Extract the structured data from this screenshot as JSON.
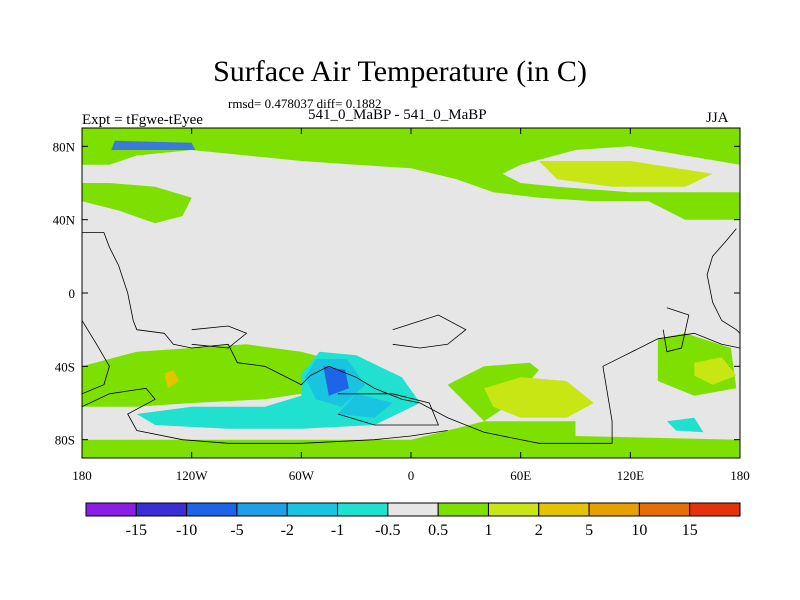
{
  "chart_data": {
    "type": "heatmap",
    "title": "Surface Air Temperature (in C)",
    "stats_label": "rmsd= 0.478037 diff= 0.1882",
    "left_label": "Expt = tFgwe-tEyee",
    "center_label": "541_0_MaBP - 541_0_MaBP",
    "right_label": "JJA",
    "x_range": [
      -180,
      180
    ],
    "y_range": [
      -90,
      90
    ],
    "x_ticks": [
      {
        "value": -180,
        "label": "180"
      },
      {
        "value": -120,
        "label": "120W"
      },
      {
        "value": -60,
        "label": "60W"
      },
      {
        "value": 0,
        "label": "0"
      },
      {
        "value": 60,
        "label": "60E"
      },
      {
        "value": 120,
        "label": "120E"
      },
      {
        "value": 180,
        "label": "180"
      }
    ],
    "y_ticks": [
      {
        "value": 80,
        "label": "80N"
      },
      {
        "value": 40,
        "label": "40N"
      },
      {
        "value": 0,
        "label": "0"
      },
      {
        "value": -40,
        "label": "40S"
      },
      {
        "value": -80,
        "label": "80S"
      }
    ],
    "colorbar": {
      "boundaries": [
        "-15",
        "-10",
        "-5",
        "-2",
        "-1",
        "-0.5",
        "0.5",
        "1",
        "2",
        "5",
        "10",
        "15"
      ],
      "colors": [
        "#8a1ee6",
        "#3a2fd6",
        "#1e64e6",
        "#1ea0e6",
        "#18c4e0",
        "#20e0d0",
        "#e6e6e6",
        "#7ee000",
        "#c8e614",
        "#e6c300",
        "#e6a000",
        "#e66e0a",
        "#e6320a"
      ]
    },
    "regions": [
      {
        "level": "0.5 to 1",
        "color": "#7ee000",
        "points": [
          [
            -180,
            90
          ],
          [
            180,
            90
          ],
          [
            180,
            70
          ],
          [
            120,
            80
          ],
          [
            90,
            78
          ],
          [
            60,
            70
          ],
          [
            50,
            65
          ],
          [
            60,
            60
          ],
          [
            80,
            58
          ],
          [
            120,
            55
          ],
          [
            150,
            55
          ],
          [
            180,
            55
          ],
          [
            180,
            40
          ],
          [
            150,
            40
          ],
          [
            130,
            50
          ],
          [
            100,
            50
          ],
          [
            70,
            52
          ],
          [
            45,
            55
          ],
          [
            25,
            62
          ],
          [
            0,
            68
          ],
          [
            -30,
            70
          ],
          [
            -60,
            72
          ],
          [
            -90,
            75
          ],
          [
            -120,
            78
          ],
          [
            -150,
            75
          ],
          [
            -165,
            70
          ],
          [
            -180,
            70
          ]
        ]
      },
      {
        "level": "0.5 to 1",
        "color": "#7ee000",
        "points": [
          [
            -180,
            50
          ],
          [
            -160,
            45
          ],
          [
            -140,
            38
          ],
          [
            -125,
            42
          ],
          [
            -120,
            52
          ],
          [
            -140,
            58
          ],
          [
            -165,
            60
          ],
          [
            -180,
            60
          ]
        ]
      },
      {
        "level": "0.5 to 1",
        "color": "#7ee000",
        "points": [
          [
            -180,
            -90
          ],
          [
            180,
            -90
          ],
          [
            180,
            -80
          ],
          [
            90,
            -78
          ],
          [
            90,
            -70
          ],
          [
            60,
            -70
          ],
          [
            40,
            -70
          ],
          [
            20,
            -50
          ],
          [
            40,
            -40
          ],
          [
            65,
            -38
          ],
          [
            70,
            -42
          ],
          [
            55,
            -60
          ],
          [
            40,
            -70
          ],
          [
            20,
            -75
          ],
          [
            0,
            -80
          ],
          [
            -60,
            -80
          ],
          [
            -120,
            -80
          ],
          [
            -150,
            -80
          ],
          [
            -180,
            -80
          ]
        ]
      },
      {
        "level": "0.5 to 1",
        "color": "#7ee000",
        "points": [
          [
            -180,
            -40
          ],
          [
            -150,
            -32
          ],
          [
            -120,
            -30
          ],
          [
            -90,
            -28
          ],
          [
            -60,
            -32
          ],
          [
            -30,
            -40
          ],
          [
            -15,
            -46
          ],
          [
            -40,
            -52
          ],
          [
            -80,
            -58
          ],
          [
            -120,
            -60
          ],
          [
            -150,
            -62
          ],
          [
            -180,
            -62
          ]
        ]
      },
      {
        "level": "0.5 to 1",
        "color": "#7ee000",
        "points": [
          [
            135,
            -25
          ],
          [
            150,
            -22
          ],
          [
            175,
            -30
          ],
          [
            178,
            -52
          ],
          [
            155,
            -56
          ],
          [
            135,
            -48
          ]
        ]
      },
      {
        "level": "1 to 2",
        "color": "#c8e614",
        "points": [
          [
            40,
            -52
          ],
          [
            60,
            -46
          ],
          [
            85,
            -48
          ],
          [
            100,
            -60
          ],
          [
            85,
            -68
          ],
          [
            60,
            -68
          ],
          [
            45,
            -62
          ]
        ]
      },
      {
        "level": "1 to 2",
        "color": "#c8e614",
        "points": [
          [
            70,
            72
          ],
          [
            120,
            72
          ],
          [
            165,
            65
          ],
          [
            150,
            58
          ],
          [
            110,
            58
          ],
          [
            80,
            62
          ]
        ]
      },
      {
        "level": "1 to 2",
        "color": "#c8e614",
        "points": [
          [
            155,
            -38
          ],
          [
            170,
            -35
          ],
          [
            178,
            -45
          ],
          [
            165,
            -50
          ],
          [
            155,
            -45
          ]
        ]
      },
      {
        "level": "2 to 5",
        "color": "#e6c300",
        "points": [
          [
            -135,
            -44
          ],
          [
            -130,
            -42
          ],
          [
            -127,
            -48
          ],
          [
            -133,
            -52
          ]
        ]
      },
      {
        "level": "-1 to -0.5",
        "color": "#20e0d0",
        "points": [
          [
            -50,
            -32
          ],
          [
            -30,
            -34
          ],
          [
            -5,
            -46
          ],
          [
            5,
            -60
          ],
          [
            -20,
            -72
          ],
          [
            -60,
            -74
          ],
          [
            -100,
            -74
          ],
          [
            -140,
            -72
          ],
          [
            -150,
            -66
          ],
          [
            -120,
            -62
          ],
          [
            -80,
            -62
          ],
          [
            -60,
            -56
          ],
          [
            -60,
            -44
          ]
        ]
      },
      {
        "level": "-1 to -0.5",
        "color": "#20e0d0",
        "points": [
          [
            140,
            -70
          ],
          [
            155,
            -68
          ],
          [
            160,
            -76
          ],
          [
            145,
            -75
          ]
        ]
      },
      {
        "level": "-2 to -1",
        "color": "#18c4e0",
        "points": [
          [
            -52,
            -36
          ],
          [
            -35,
            -36
          ],
          [
            -25,
            -50
          ],
          [
            -38,
            -62
          ],
          [
            -52,
            -58
          ],
          [
            -58,
            -46
          ]
        ]
      },
      {
        "level": "-2 to -1",
        "color": "#18c4e0",
        "points": [
          [
            -30,
            -55
          ],
          [
            -10,
            -60
          ],
          [
            -20,
            -68
          ],
          [
            -40,
            -66
          ]
        ]
      },
      {
        "level": "-5 to -2",
        "color": "#1e64e6",
        "points": [
          [
            -48,
            -40
          ],
          [
            -36,
            -42
          ],
          [
            -34,
            -52
          ],
          [
            -45,
            -56
          ]
        ]
      },
      {
        "level": "-5 to -2",
        "color": "#3a7ad8",
        "points": [
          [
            -164,
            78
          ],
          [
            -118,
            78
          ],
          [
            -120,
            82
          ],
          [
            -162,
            83
          ]
        ]
      }
    ],
    "outlines": [
      {
        "points": [
          [
            -180,
            33
          ],
          [
            -168,
            33
          ],
          [
            -165,
            25
          ],
          [
            -160,
            15
          ],
          [
            -155,
            0
          ],
          [
            -152,
            -15
          ],
          [
            -150,
            -20
          ],
          [
            -135,
            -22
          ],
          [
            -130,
            -28
          ],
          [
            -120,
            -30
          ],
          [
            -100,
            -28
          ],
          [
            -95,
            -38
          ],
          [
            -80,
            -40
          ],
          [
            -70,
            -45
          ],
          [
            -60,
            -50
          ],
          [
            -55,
            -45
          ],
          [
            -45,
            -40
          ],
          [
            -30,
            -46
          ],
          [
            -20,
            -52
          ],
          [
            -5,
            -58
          ],
          [
            5,
            -60
          ],
          [
            20,
            -68
          ],
          [
            40,
            -76
          ],
          [
            70,
            -82
          ],
          [
            90,
            -82
          ],
          [
            110,
            -82
          ],
          [
            110,
            -70
          ],
          [
            105,
            -40
          ],
          [
            115,
            -35
          ],
          [
            135,
            -25
          ],
          [
            155,
            -22
          ],
          [
            170,
            -28
          ],
          [
            180,
            -30
          ]
        ]
      },
      {
        "points": [
          [
            -180,
            -62
          ],
          [
            -165,
            -55
          ],
          [
            -145,
            -52
          ],
          [
            -140,
            -58
          ],
          [
            -155,
            -66
          ],
          [
            -150,
            -75
          ],
          [
            -125,
            -80
          ],
          [
            -100,
            -82
          ],
          [
            -60,
            -82
          ],
          [
            -20,
            -80
          ],
          [
            0,
            -78
          ],
          [
            20,
            -75
          ]
        ]
      },
      {
        "points": [
          [
            -40,
            -55
          ],
          [
            -10,
            -55
          ],
          [
            10,
            -60
          ],
          [
            15,
            -72
          ],
          [
            -20,
            -72
          ],
          [
            -40,
            -66
          ]
        ]
      },
      {
        "points": [
          [
            -10,
            -20
          ],
          [
            15,
            -12
          ],
          [
            30,
            -20
          ],
          [
            20,
            -28
          ],
          [
            5,
            -30
          ],
          [
            -10,
            -28
          ]
        ]
      },
      {
        "points": [
          [
            -120,
            -20
          ],
          [
            -100,
            -18
          ],
          [
            -90,
            -22
          ],
          [
            -100,
            -30
          ],
          [
            -120,
            -28
          ]
        ]
      },
      {
        "points": [
          [
            140,
            -8
          ],
          [
            152,
            -12
          ],
          [
            148,
            -30
          ],
          [
            140,
            -32
          ],
          [
            138,
            -20
          ]
        ]
      },
      {
        "points": [
          [
            178,
            35
          ],
          [
            172,
            28
          ],
          [
            165,
            20
          ],
          [
            162,
            10
          ],
          [
            165,
            -5
          ],
          [
            170,
            -15
          ],
          [
            178,
            -20
          ],
          [
            180,
            -22
          ]
        ]
      },
      {
        "points": [
          [
            -180,
            -15
          ],
          [
            -172,
            -28
          ],
          [
            -165,
            -40
          ],
          [
            -168,
            -50
          ],
          [
            -180,
            -55
          ]
        ]
      }
    ]
  }
}
